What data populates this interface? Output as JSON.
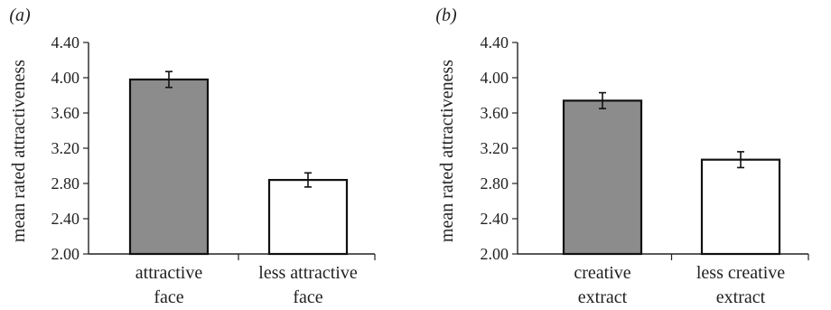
{
  "chart_data": [
    {
      "type": "bar",
      "panel_label": "(a)",
      "categories": [
        "attractive face",
        "less attractive face"
      ],
      "category_lines": [
        [
          "attractive",
          "face"
        ],
        [
          "less attractive",
          "face"
        ]
      ],
      "values": [
        3.98,
        2.84
      ],
      "errors": [
        0.09,
        0.08
      ],
      "bar_colors": [
        "#8c8c8c",
        "#ffffff"
      ],
      "ylabel": "mean rated attractiveness",
      "xlabel": "",
      "title": "",
      "ylim": [
        2.0,
        4.4
      ],
      "yticks": [
        "2.00",
        "2.40",
        "2.80",
        "3.20",
        "3.60",
        "4.00",
        "4.40"
      ],
      "grid": false
    },
    {
      "type": "bar",
      "panel_label": "(b)",
      "categories": [
        "creative extract",
        "less creative extract"
      ],
      "category_lines": [
        [
          "creative",
          "extract"
        ],
        [
          "less creative",
          "extract"
        ]
      ],
      "values": [
        3.74,
        3.07
      ],
      "errors": [
        0.09,
        0.09
      ],
      "bar_colors": [
        "#8c8c8c",
        "#ffffff"
      ],
      "ylabel": "mean rated attractiveness",
      "xlabel": "",
      "title": "",
      "ylim": [
        2.0,
        4.4
      ],
      "yticks": [
        "2.00",
        "2.40",
        "2.80",
        "3.20",
        "3.60",
        "4.00",
        "4.40"
      ],
      "grid": false
    }
  ]
}
